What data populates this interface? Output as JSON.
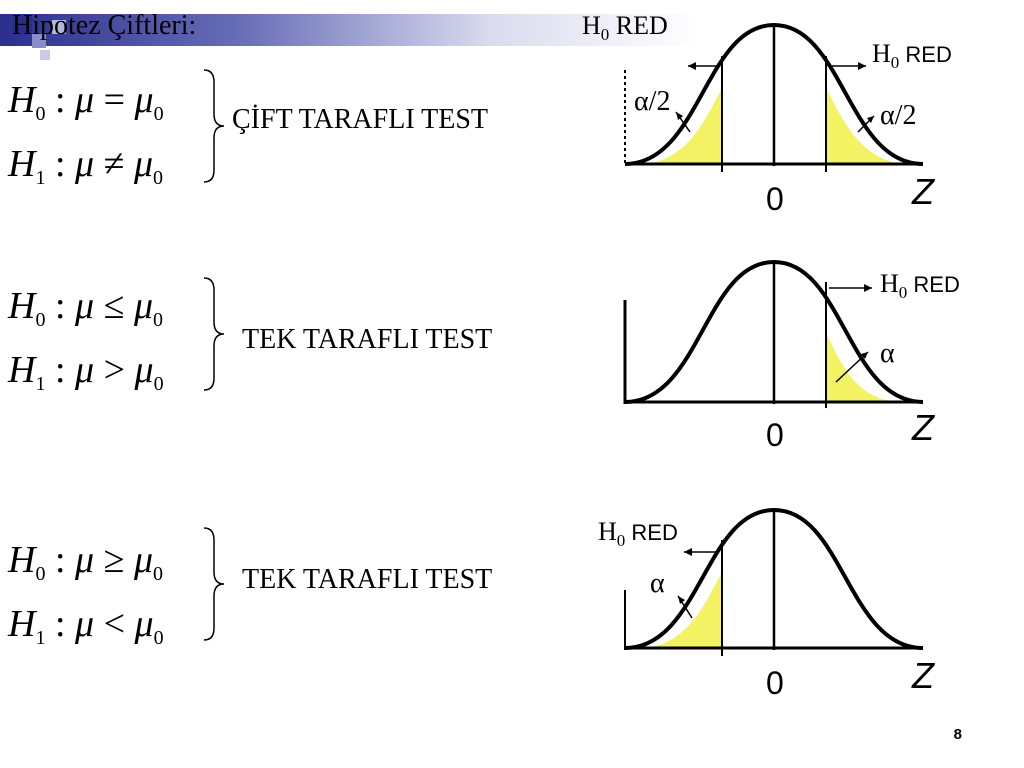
{
  "slide": {
    "title": "Hipotez Çiftleri:",
    "page_number": "8"
  },
  "blocks": [
    {
      "h0": {
        "sym": "H",
        "sub": "0",
        "rel": "="
      },
      "h1": {
        "sym": "H",
        "sub": "1",
        "rel": "≠"
      },
      "mu": "μ",
      "mu0_sub": "0",
      "label": "ÇİFT TARAFLI TEST",
      "diagram": {
        "h0_red_left": {
          "h": "H",
          "sub": "0",
          "text": " RED"
        },
        "h0_red_right": {
          "h": "H",
          "sub": "0",
          "text": " RED"
        },
        "alpha_left": "α/2",
        "alpha_right": "α/2",
        "zero": "0",
        "z": "Z"
      }
    },
    {
      "h0": {
        "sym": "H",
        "sub": "0",
        "rel": "≤"
      },
      "h1": {
        "sym": "H",
        "sub": "1",
        "rel": ">"
      },
      "mu": "μ",
      "mu0_sub": "0",
      "label": "TEK TARAFLI TEST",
      "diagram": {
        "h0_red_right": {
          "h": "H",
          "sub": "0",
          "text": " RED"
        },
        "alpha_right": "α",
        "zero": "0",
        "z": "Z"
      }
    },
    {
      "h0": {
        "sym": "H",
        "sub": "0",
        "rel": "≥"
      },
      "h1": {
        "sym": "H",
        "sub": "1",
        "rel": "<"
      },
      "mu": "μ",
      "mu0_sub": "0",
      "label": "TEK TARAFLI TEST",
      "diagram": {
        "h0_red_left": {
          "h": "H",
          "sub": "0",
          "text": " RED"
        },
        "alpha_left": "α",
        "zero": "0",
        "z": "Z"
      }
    }
  ],
  "colors": {
    "shade": "#f2f264",
    "title_bar": "#2a2f8c"
  }
}
